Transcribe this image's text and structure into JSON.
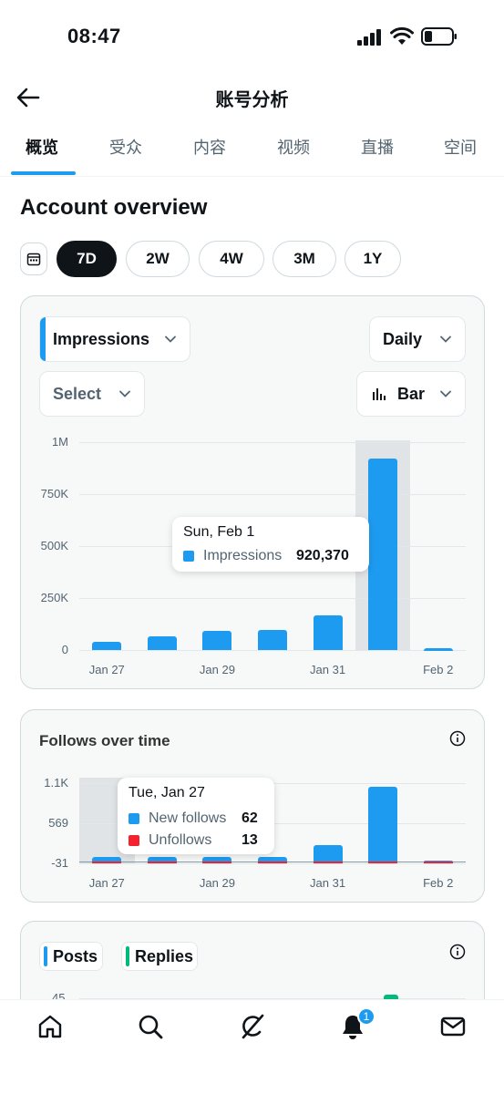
{
  "status": {
    "time": "08:47"
  },
  "header": {
    "title": "账号分析"
  },
  "tabs": [
    {
      "label": "概览",
      "active": true
    },
    {
      "label": "受众"
    },
    {
      "label": "内容"
    },
    {
      "label": "视频"
    },
    {
      "label": "直播"
    },
    {
      "label": "空间"
    }
  ],
  "section_title": "Account overview",
  "ranges": [
    {
      "label": "7D",
      "active": true
    },
    {
      "label": "2W"
    },
    {
      "label": "4W"
    },
    {
      "label": "3M"
    },
    {
      "label": "1Y"
    }
  ],
  "impressions_card": {
    "metric_dropdown": "Impressions",
    "interval_dropdown": "Daily",
    "compare_dropdown": "Select",
    "chart_type_dropdown": "Bar",
    "tooltip": {
      "date": "Sun, Feb 1",
      "series": "Impressions",
      "value": "920,370"
    }
  },
  "follows_card": {
    "title": "Follows over time",
    "tooltip": {
      "date": "Tue, Jan 27",
      "rows": [
        {
          "name": "New follows",
          "value": "62"
        },
        {
          "name": "Unfollows",
          "value": "13"
        }
      ]
    }
  },
  "posts_card": {
    "legend": [
      "Posts",
      "Replies"
    ],
    "y_tick_visible": "45"
  },
  "nav": {
    "notification_count": "1"
  },
  "colors": {
    "accent": "#1d9bf0",
    "unfollow": "#f4212e",
    "replies": "#00ba7c",
    "dark": "#0f1419"
  },
  "chart_data": [
    {
      "type": "bar",
      "series": [
        {
          "name": "Impressions",
          "values": [
            38000,
            65000,
            90000,
            95000,
            165000,
            920370,
            8000
          ]
        }
      ],
      "categories": [
        "Jan 27",
        "Jan 28",
        "Jan 29",
        "Jan 30",
        "Jan 31",
        "Feb 1",
        "Feb 2"
      ],
      "x_tick_labels": [
        "Jan 27",
        "Jan 29",
        "Jan 31",
        "Feb 2"
      ],
      "y_tick_labels": [
        "1M",
        "750K",
        "500K",
        "250K",
        "0"
      ],
      "ylim": [
        0,
        1000000
      ],
      "highlight_index": 5
    },
    {
      "type": "bar",
      "categories": [
        "Jan 27",
        "Jan 28",
        "Jan 29",
        "Jan 30",
        "Jan 31",
        "Feb 1",
        "Feb 2"
      ],
      "series": [
        {
          "name": "New follows",
          "values": [
            62,
            60,
            60,
            58,
            230,
            1050,
            5
          ]
        },
        {
          "name": "Unfollows",
          "values": [
            13,
            12,
            10,
            10,
            12,
            30,
            2
          ]
        }
      ],
      "x_tick_labels": [
        "Jan 27",
        "Jan 29",
        "Jan 31",
        "Feb 2"
      ],
      "y_tick_labels": [
        "1.1K",
        "569",
        "-31"
      ],
      "ylim": [
        -31,
        1100
      ],
      "highlight_index": 0
    }
  ]
}
